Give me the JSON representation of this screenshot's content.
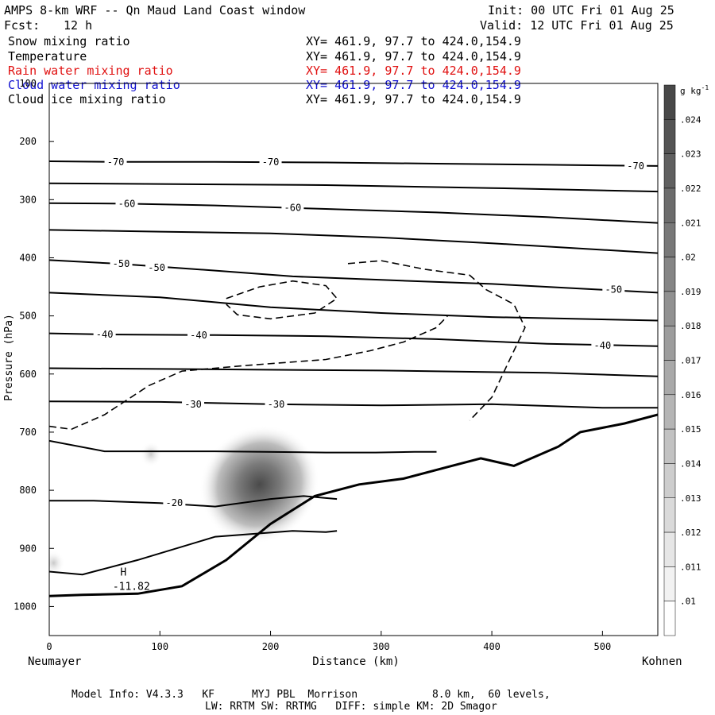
{
  "header": {
    "title": "AMPS 8-km WRF -- Qn Maud Land Coast window",
    "init": "Init: 00 UTC Fri 01 Aug 25",
    "fcst_label": "Fcst:",
    "fcst_value": "12 h",
    "valid": "Valid: 12 UTC Fri 01 Aug 25"
  },
  "fields": [
    {
      "name": "Snow mixing ratio",
      "xy": "XY= 461.9, 97.7 to 424.0,154.9",
      "color": "#000000"
    },
    {
      "name": "Temperature",
      "xy": "XY= 461.9, 97.7 to 424.0,154.9",
      "color": "#000000"
    },
    {
      "name": "Rain water mixing ratio",
      "xy": "XY= 461.9, 97.7 to 424.0,154.9",
      "color": "#e01010"
    },
    {
      "name": "Cloud water mixing ratio",
      "xy": "XY= 461.9, 97.7 to 424.0,154.9",
      "color": "#1010d0"
    },
    {
      "name": "Cloud ice mixing ratio",
      "xy": "XY= 461.9, 97.7 to 424.0,154.9",
      "color": "#000000"
    }
  ],
  "footer": {
    "line1": "Model Info: V4.3.3   KF      MYJ PBL  Morrison            8.0 km,  60 levels,",
    "line2": "LW: RRTM SW: RRTMG   DIFF: simple KM: 2D Smagor"
  },
  "chart_data": {
    "type": "cross-section",
    "xlabel": "Distance (km)",
    "ylabel": "Pressure (hPa)",
    "x_left_label": "Neumayer",
    "x_right_label": "Kohnen",
    "xlim": [
      0,
      550
    ],
    "ylim": [
      1050,
      100
    ],
    "x_ticks": [
      0,
      100,
      200,
      300,
      400,
      500
    ],
    "y_ticks": [
      100,
      200,
      300,
      400,
      500,
      600,
      700,
      800,
      900,
      1000
    ],
    "colorbar": {
      "unit": "g kg",
      "unit_exp": "-1",
      "labels": [
        ".01",
        ".011",
        ".012",
        ".013",
        ".014",
        ".015",
        ".016",
        ".017",
        ".018",
        ".019",
        ".02",
        ".021",
        ".022",
        ".023",
        ".024"
      ],
      "colors": [
        "#ffffff",
        "#f2f2f2",
        "#e6e6e6",
        "#dadada",
        "#cdcdcd",
        "#c2c2c2",
        "#b5b5b5",
        "#a9a9a9",
        "#9d9d9d",
        "#919191",
        "#858585",
        "#787878",
        "#6c6c6c",
        "#606060",
        "#545454",
        "#484848"
      ]
    },
    "isotherms": [
      {
        "label": "-70",
        "points": [
          [
            0,
            234
          ],
          [
            60,
            235
          ],
          [
            150,
            235
          ],
          [
            250,
            236
          ],
          [
            350,
            238
          ],
          [
            450,
            240
          ],
          [
            550,
            242
          ]
        ],
        "label_at": [
          [
            60,
            235
          ],
          [
            200,
            235
          ],
          [
            530,
            242
          ]
        ]
      },
      {
        "label": "",
        "points": [
          [
            0,
            272
          ],
          [
            100,
            273
          ],
          [
            250,
            275
          ],
          [
            400,
            280
          ],
          [
            550,
            286
          ]
        ],
        "label_at": []
      },
      {
        "label": "-60",
        "points": [
          [
            0,
            306
          ],
          [
            70,
            307
          ],
          [
            150,
            310
          ],
          [
            250,
            316
          ],
          [
            350,
            322
          ],
          [
            450,
            330
          ],
          [
            550,
            340
          ]
        ],
        "label_at": [
          [
            70,
            307
          ],
          [
            220,
            314
          ]
        ]
      },
      {
        "label": "",
        "points": [
          [
            0,
            352
          ],
          [
            100,
            355
          ],
          [
            200,
            358
          ],
          [
            300,
            365
          ],
          [
            400,
            375
          ],
          [
            550,
            392
          ]
        ],
        "label_at": []
      },
      {
        "label": "-50",
        "points": [
          [
            0,
            404
          ],
          [
            60,
            410
          ],
          [
            150,
            422
          ],
          [
            220,
            432
          ],
          [
            300,
            438
          ],
          [
            400,
            445
          ],
          [
            500,
            455
          ],
          [
            550,
            460
          ]
        ],
        "label_at": [
          [
            65,
            410
          ],
          [
            97,
            417
          ],
          [
            510,
            455
          ]
        ]
      },
      {
        "label": "",
        "points": [
          [
            0,
            460
          ],
          [
            100,
            468
          ],
          [
            200,
            485
          ],
          [
            300,
            495
          ],
          [
            400,
            502
          ],
          [
            550,
            508
          ]
        ],
        "label_at": []
      },
      {
        "label": "-40",
        "points": [
          [
            0,
            530
          ],
          [
            50,
            532
          ],
          [
            150,
            533
          ],
          [
            250,
            535
          ],
          [
            350,
            540
          ],
          [
            450,
            548
          ],
          [
            550,
            552
          ]
        ],
        "label_at": [
          [
            50,
            532
          ],
          [
            135,
            533
          ],
          [
            500,
            551
          ]
        ]
      },
      {
        "label": "",
        "points": [
          [
            0,
            590
          ],
          [
            150,
            592
          ],
          [
            300,
            594
          ],
          [
            450,
            598
          ],
          [
            550,
            604
          ]
        ],
        "label_at": []
      },
      {
        "label": "-30",
        "points": [
          [
            0,
            647
          ],
          [
            100,
            648
          ],
          [
            200,
            652
          ],
          [
            300,
            654
          ],
          [
            400,
            652
          ],
          [
            500,
            658
          ],
          [
            550,
            658
          ]
        ],
        "label_at": [
          [
            130,
            652
          ],
          [
            205,
            652
          ]
        ]
      },
      {
        "label": "",
        "points": [
          [
            0,
            715
          ],
          [
            50,
            733
          ],
          [
            150,
            733
          ],
          [
            250,
            735
          ],
          [
            295,
            735
          ],
          [
            330,
            734
          ],
          [
            350,
            734
          ]
        ],
        "label_at": []
      },
      {
        "label": "-20",
        "points": [
          [
            0,
            818
          ],
          [
            40,
            818
          ],
          [
            100,
            822
          ],
          [
            150,
            828
          ],
          [
            200,
            815
          ],
          [
            230,
            810
          ],
          [
            260,
            815
          ]
        ],
        "label_at": [
          [
            113,
            822
          ]
        ]
      },
      {
        "label": "",
        "points": [
          [
            0,
            940
          ],
          [
            30,
            945
          ],
          [
            80,
            920
          ],
          [
            150,
            880
          ],
          [
            220,
            870
          ],
          [
            250,
            872
          ],
          [
            260,
            870
          ]
        ],
        "label_at": []
      }
    ],
    "terrain_surface": [
      [
        0,
        982
      ],
      [
        30,
        980
      ],
      [
        80,
        978
      ],
      [
        120,
        965
      ],
      [
        160,
        920
      ],
      [
        200,
        858
      ],
      [
        240,
        810
      ],
      [
        280,
        790
      ],
      [
        320,
        780
      ],
      [
        360,
        760
      ],
      [
        390,
        745
      ],
      [
        420,
        758
      ],
      [
        460,
        725
      ],
      [
        480,
        700
      ],
      [
        520,
        685
      ],
      [
        550,
        670
      ]
    ],
    "high_label": {
      "text": "H",
      "value": "-11.82",
      "x": 67,
      "p": 955
    },
    "snow_contours_dashed": [
      [
        [
          0,
          690
        ],
        [
          20,
          695
        ],
        [
          50,
          670
        ],
        [
          90,
          620
        ],
        [
          120,
          595
        ],
        [
          180,
          585
        ],
        [
          250,
          575
        ],
        [
          290,
          560
        ],
        [
          320,
          545
        ],
        [
          350,
          520
        ],
        [
          360,
          500
        ]
      ],
      [
        [
          160,
          470
        ],
        [
          190,
          450
        ],
        [
          220,
          440
        ],
        [
          250,
          448
        ],
        [
          260,
          470
        ],
        [
          240,
          495
        ],
        [
          200,
          505
        ],
        [
          170,
          498
        ],
        [
          160,
          480
        ]
      ],
      [
        [
          270,
          410
        ],
        [
          300,
          405
        ],
        [
          340,
          420
        ],
        [
          380,
          430
        ],
        [
          395,
          455
        ],
        [
          420,
          480
        ],
        [
          430,
          520
        ],
        [
          420,
          560
        ],
        [
          410,
          600
        ],
        [
          400,
          640
        ],
        [
          380,
          680
        ]
      ]
    ],
    "shading_max": {
      "x": 190,
      "p": 790,
      "value": 0.023
    }
  }
}
